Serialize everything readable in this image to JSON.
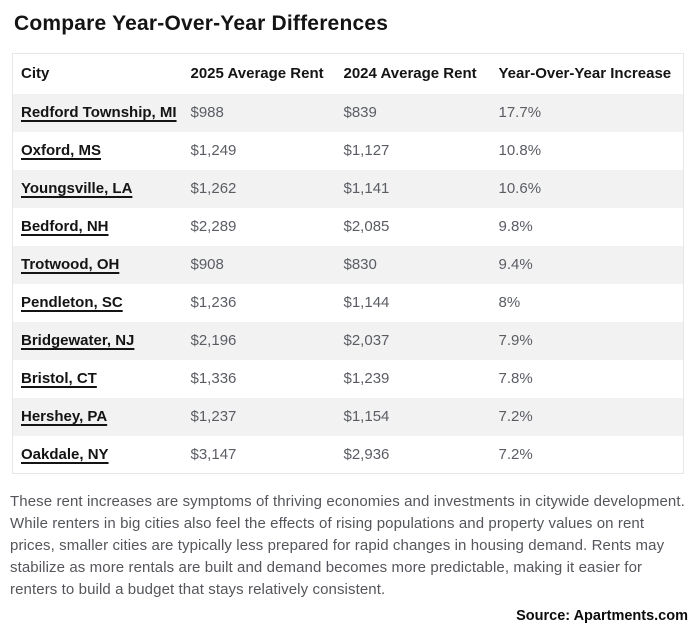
{
  "title": "Compare Year-Over-Year Differences",
  "table": {
    "headers": [
      "City",
      "2025 Average Rent",
      "2024 Average Rent",
      "Year-Over-Year Increase"
    ],
    "rows": [
      {
        "city": "Redford Township, MI",
        "rent_2025": "$988",
        "rent_2024": "$839",
        "yoy_increase": "17.7%"
      },
      {
        "city": "Oxford, MS",
        "rent_2025": "$1,249",
        "rent_2024": "$1,127",
        "yoy_increase": "10.8%"
      },
      {
        "city": "Youngsville, LA",
        "rent_2025": "$1,262",
        "rent_2024": "$1,141",
        "yoy_increase": "10.6%"
      },
      {
        "city": "Bedford, NH",
        "rent_2025": "$2,289",
        "rent_2024": "$2,085",
        "yoy_increase": "9.8%"
      },
      {
        "city": "Trotwood, OH",
        "rent_2025": "$908",
        "rent_2024": "$830",
        "yoy_increase": "9.4%"
      },
      {
        "city": "Pendleton, SC",
        "rent_2025": "$1,236",
        "rent_2024": "$1,144",
        "yoy_increase": "8%"
      },
      {
        "city": "Bridgewater, NJ",
        "rent_2025": "$2,196",
        "rent_2024": "$2,037",
        "yoy_increase": "7.9%"
      },
      {
        "city": "Bristol, CT",
        "rent_2025": "$1,336",
        "rent_2024": "$1,239",
        "yoy_increase": "7.8%"
      },
      {
        "city": "Hershey, PA",
        "rent_2025": "$1,237",
        "rent_2024": "$1,154",
        "yoy_increase": "7.2%"
      },
      {
        "city": "Oakdale, NY",
        "rent_2025": "$3,147",
        "rent_2024": "$2,936",
        "yoy_increase": "7.2%"
      }
    ]
  },
  "description": "These rent increases are symptoms of thriving economies and investments in citywide development. While renters in big cities also feel the effects of rising populations and property values on rent prices, smaller cities are typically less prepared for rapid changes in housing demand. Rents may stabilize as more rentals are built and demand becomes more predictable, making it easier for renters to build a budget that stays relatively consistent.",
  "source": "Source: Apartments.com",
  "colors": {
    "row_stripe": "#f2f2f2",
    "table_border": "#e7e7e7",
    "value_text": "#5a5d63",
    "body_text": "#54565b",
    "heading_text": "#141414"
  },
  "chart_data": {
    "type": "table",
    "title": "Compare Year-Over-Year Differences",
    "columns": [
      "City",
      "2025 Average Rent",
      "2024 Average Rent",
      "Year-Over-Year Increase"
    ],
    "rows": [
      [
        "Redford Township, MI",
        988,
        839,
        17.7
      ],
      [
        "Oxford, MS",
        1249,
        1127,
        10.8
      ],
      [
        "Youngsville, LA",
        1262,
        1141,
        10.6
      ],
      [
        "Bedford, NH",
        2289,
        2085,
        9.8
      ],
      [
        "Trotwood, OH",
        908,
        830,
        9.4
      ],
      [
        "Pendleton, SC",
        1236,
        1144,
        8.0
      ],
      [
        "Bridgewater, NJ",
        2196,
        2037,
        7.9
      ],
      [
        "Bristol, CT",
        1336,
        1239,
        7.8
      ],
      [
        "Hershey, PA",
        1237,
        1154,
        7.2
      ],
      [
        "Oakdale, NY",
        3147,
        2936,
        7.2
      ]
    ],
    "units": {
      "rent": "USD",
      "increase": "percent"
    },
    "layout_hints": {
      "striped_rows": true,
      "header_row": true
    },
    "source": "Apartments.com"
  }
}
